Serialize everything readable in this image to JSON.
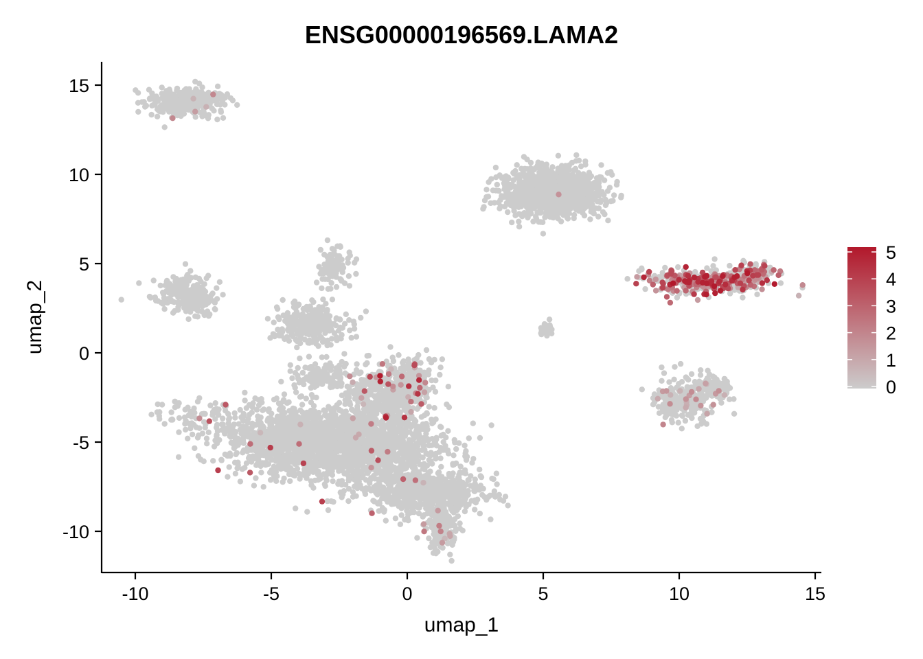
{
  "chart_data": {
    "type": "scatter",
    "title": "ENSG00000196569.LAMA2",
    "xlabel": "umap_1",
    "ylabel": "umap_2",
    "xlim": [
      -11.2,
      15.2
    ],
    "ylim": [
      -12.3,
      16.3
    ],
    "x_ticks": [
      -10,
      -5,
      0,
      5,
      10,
      15
    ],
    "y_ticks": [
      -10,
      -5,
      0,
      5,
      10,
      15
    ],
    "x_tick_labels": [
      "-10",
      "-5",
      "0",
      "5",
      "10",
      "15"
    ],
    "y_tick_labels": [
      "-10",
      "-5",
      "0",
      "5",
      "10",
      "15"
    ],
    "grid": false,
    "color_scale": {
      "min": 0,
      "max": 5,
      "low_color": "#cccccc",
      "high_color": "#b2182b",
      "ticks": [
        0,
        1,
        2,
        3,
        4,
        5
      ],
      "tick_labels": [
        "0",
        "1",
        "2",
        "3",
        "4",
        "5"
      ],
      "legend_position": "right"
    },
    "clusters": [
      {
        "cx": -8.2,
        "cy": 14.0,
        "sx": 0.7,
        "sy": 0.4,
        "n": 260,
        "expr_frac": 0.01,
        "expr_max": 3
      },
      {
        "cx": -7.6,
        "cy": 14.3,
        "sx": 0.5,
        "sy": 0.15,
        "n": 80,
        "expr_frac": 0.02,
        "expr_max": 2
      },
      {
        "cx": -8.3,
        "cy": 3.4,
        "sx": 0.55,
        "sy": 0.5,
        "n": 200,
        "expr_frac": 0.0,
        "expr_max": 0
      },
      {
        "cx": -7.7,
        "cy": 2.9,
        "sx": 0.3,
        "sy": 0.3,
        "n": 70,
        "expr_frac": 0.0,
        "expr_max": 0
      },
      {
        "cx": -7.9,
        "cy": -3.6,
        "sx": 0.8,
        "sy": 0.5,
        "n": 60,
        "expr_frac": 0.12,
        "expr_max": 4
      },
      {
        "cx": -3.6,
        "cy": -4.8,
        "sx": 1.6,
        "sy": 0.9,
        "n": 1400,
        "expr_frac": 0.004,
        "expr_max": 4
      },
      {
        "cx": -1.2,
        "cy": -5.5,
        "sx": 1.3,
        "sy": 1.2,
        "n": 900,
        "expr_frac": 0.008,
        "expr_max": 4
      },
      {
        "cx": -0.8,
        "cy": -2.3,
        "sx": 0.8,
        "sy": 0.9,
        "n": 350,
        "expr_frac": 0.06,
        "expr_max": 5
      },
      {
        "cx": 0.2,
        "cy": -1.6,
        "sx": 0.5,
        "sy": 0.7,
        "n": 150,
        "expr_frac": 0.08,
        "expr_max": 5
      },
      {
        "cx": 0.8,
        "cy": -7.8,
        "sx": 1.0,
        "sy": 0.6,
        "n": 600,
        "expr_frac": 0.005,
        "expr_max": 3
      },
      {
        "cx": 1.3,
        "cy": -9.8,
        "sx": 0.3,
        "sy": 0.6,
        "n": 160,
        "expr_frac": 0.04,
        "expr_max": 3
      },
      {
        "cx": -3.5,
        "cy": 1.6,
        "sx": 0.6,
        "sy": 0.6,
        "n": 280,
        "expr_frac": 0.004,
        "expr_max": 3
      },
      {
        "cx": -2.7,
        "cy": 4.8,
        "sx": 0.3,
        "sy": 0.5,
        "n": 100,
        "expr_frac": 0.0,
        "expr_max": 0
      },
      {
        "cx": -3.2,
        "cy": -1.3,
        "sx": 0.6,
        "sy": 0.5,
        "n": 120,
        "expr_frac": 0.0,
        "expr_max": 0
      },
      {
        "cx": 5.3,
        "cy": 9.0,
        "sx": 0.9,
        "sy": 0.7,
        "n": 1100,
        "expr_frac": 0.003,
        "expr_max": 2
      },
      {
        "cx": 5.1,
        "cy": 1.3,
        "sx": 0.15,
        "sy": 0.15,
        "n": 30,
        "expr_frac": 0.0,
        "expr_max": 0
      },
      {
        "cx": 10.9,
        "cy": 4.0,
        "sx": 1.1,
        "sy": 0.35,
        "n": 380,
        "expr_frac": 0.5,
        "expr_max": 5
      },
      {
        "cx": 12.8,
        "cy": 4.5,
        "sx": 0.4,
        "sy": 0.3,
        "n": 90,
        "expr_frac": 0.4,
        "expr_max": 4
      },
      {
        "cx": 10.3,
        "cy": -2.6,
        "sx": 0.6,
        "sy": 0.6,
        "n": 260,
        "expr_frac": 0.06,
        "expr_max": 2
      },
      {
        "cx": 11.3,
        "cy": -2.0,
        "sx": 0.3,
        "sy": 0.3,
        "n": 60,
        "expr_frac": 0.02,
        "expr_max": 2
      }
    ]
  }
}
